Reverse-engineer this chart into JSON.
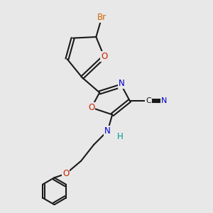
{
  "bg_color": "#e8e8e8",
  "bond_color": "#1a1a1a",
  "bond_width": 1.5,
  "atom_colors": {
    "C": "#1a1a1a",
    "N": "#0000cc",
    "O": "#cc2200",
    "Br": "#cc6600",
    "H": "#009999"
  },
  "font_size": 8.5
}
